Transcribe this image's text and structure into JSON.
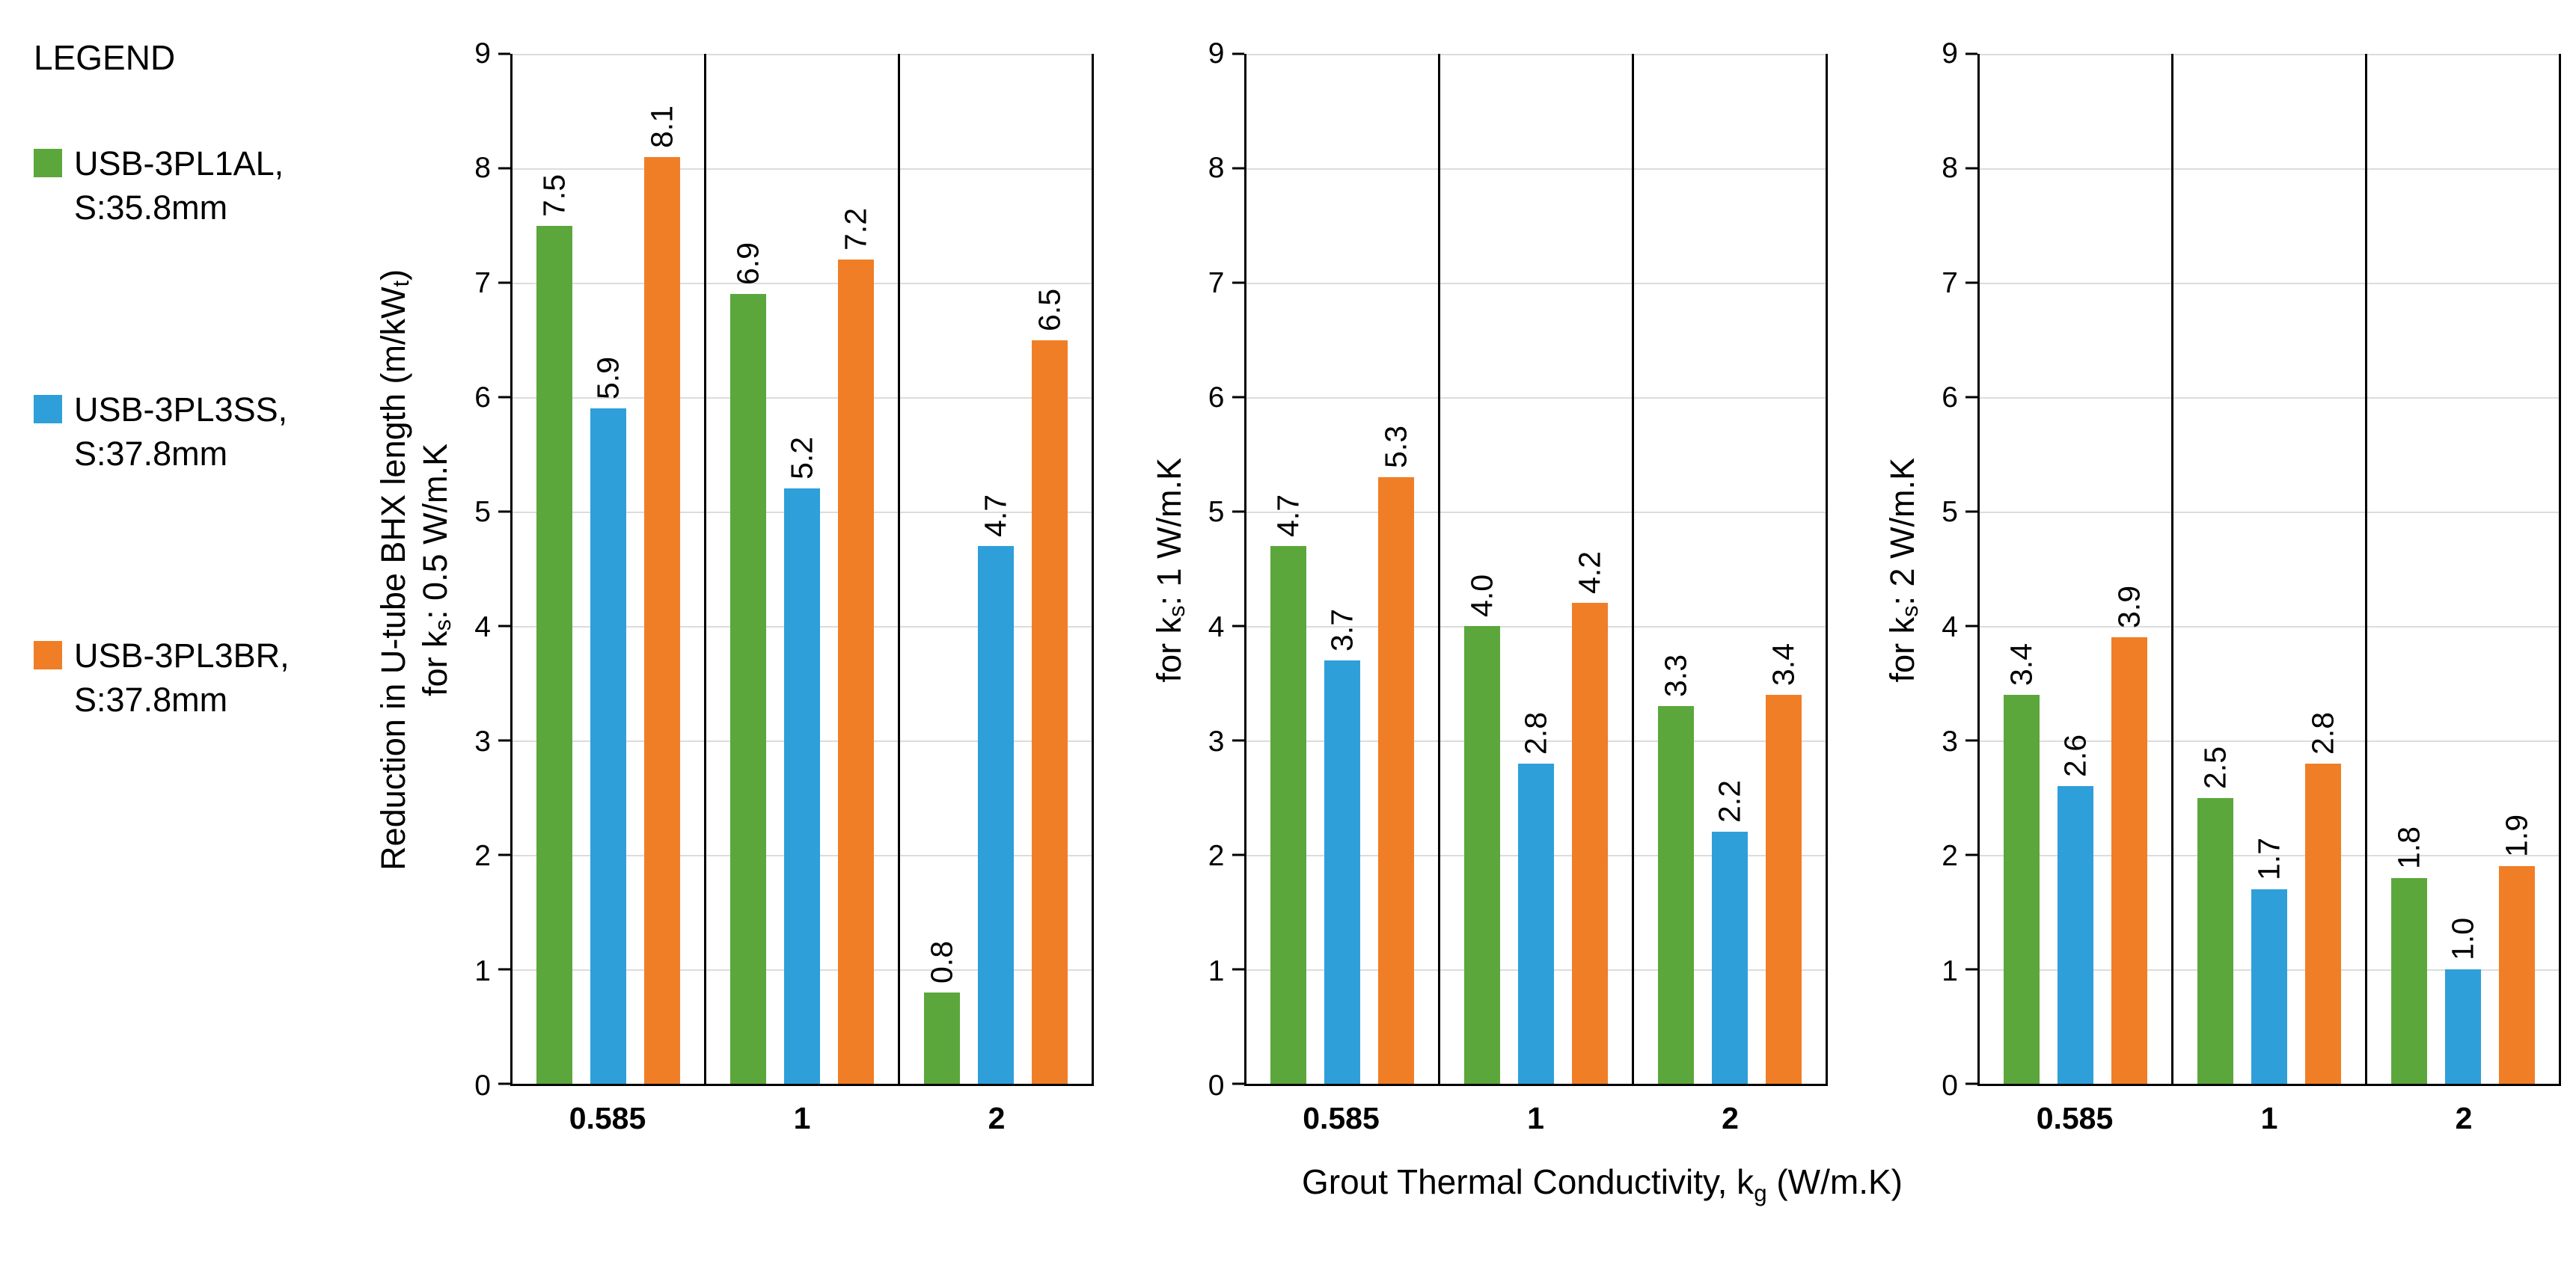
{
  "legend": {
    "title": "LEGEND",
    "items": [
      {
        "label_lines": [
          "USB-3PL1AL,",
          "S:35.8mm"
        ],
        "color": "#5BA73C"
      },
      {
        "label_lines": [
          "USB-3PL3SS,",
          "S:37.8mm"
        ],
        "color": "#2E9FD9"
      },
      {
        "label_lines": [
          "USB-3PL3BR,",
          "S:37.8mm"
        ],
        "color": "#F07E26"
      }
    ]
  },
  "chart_data": {
    "type": "bar",
    "categories": [
      "0.585",
      "1",
      "2"
    ],
    "x_axis_title": "Grout Thermal Conductivity,  k~g~ (W/m.K)",
    "y_range": [
      0,
      9
    ],
    "y_tick_step": 1,
    "grid": true,
    "legend_position": "top-left",
    "series_colors": [
      "#5BA73C",
      "#2E9FD9",
      "#F07E26"
    ],
    "series_names": [
      "USB-3PL1AL, S:35.8mm",
      "USB-3PL3SS, S:37.8mm",
      "USB-3PL3BR, S:37.8mm"
    ],
    "panels": [
      {
        "y_axis_title_lines": [
          "Reduction in U-tube BHX length (m/kW~t~)",
          "for k~s~: 0.5  W/m.K"
        ],
        "series": [
          {
            "name": "USB-3PL1AL, S:35.8mm",
            "values": [
              7.5,
              6.9,
              0.8
            ]
          },
          {
            "name": "USB-3PL3SS, S:37.8mm",
            "values": [
              5.9,
              5.2,
              4.7
            ]
          },
          {
            "name": "USB-3PL3BR, S:37.8mm",
            "values": [
              8.1,
              7.2,
              6.5
            ]
          }
        ]
      },
      {
        "y_axis_title_lines": [
          "for k~s~: 1 W/m.K"
        ],
        "series": [
          {
            "name": "USB-3PL1AL, S:35.8mm",
            "values": [
              4.7,
              4.0,
              3.3
            ]
          },
          {
            "name": "USB-3PL3SS, S:37.8mm",
            "values": [
              3.7,
              2.8,
              2.2
            ]
          },
          {
            "name": "USB-3PL3BR, S:37.8mm",
            "values": [
              5.3,
              4.2,
              3.4
            ]
          }
        ]
      },
      {
        "y_axis_title_lines": [
          "for k~s~: 2 W/m.K"
        ],
        "series": [
          {
            "name": "USB-3PL1AL, S:35.8mm",
            "values": [
              3.4,
              2.5,
              1.8
            ]
          },
          {
            "name": "USB-3PL3SS, S:37.8mm",
            "values": [
              2.6,
              1.7,
              1.0
            ]
          },
          {
            "name": "USB-3PL3BR, S:37.8mm",
            "values": [
              3.9,
              2.8,
              1.9
            ]
          }
        ]
      }
    ]
  }
}
